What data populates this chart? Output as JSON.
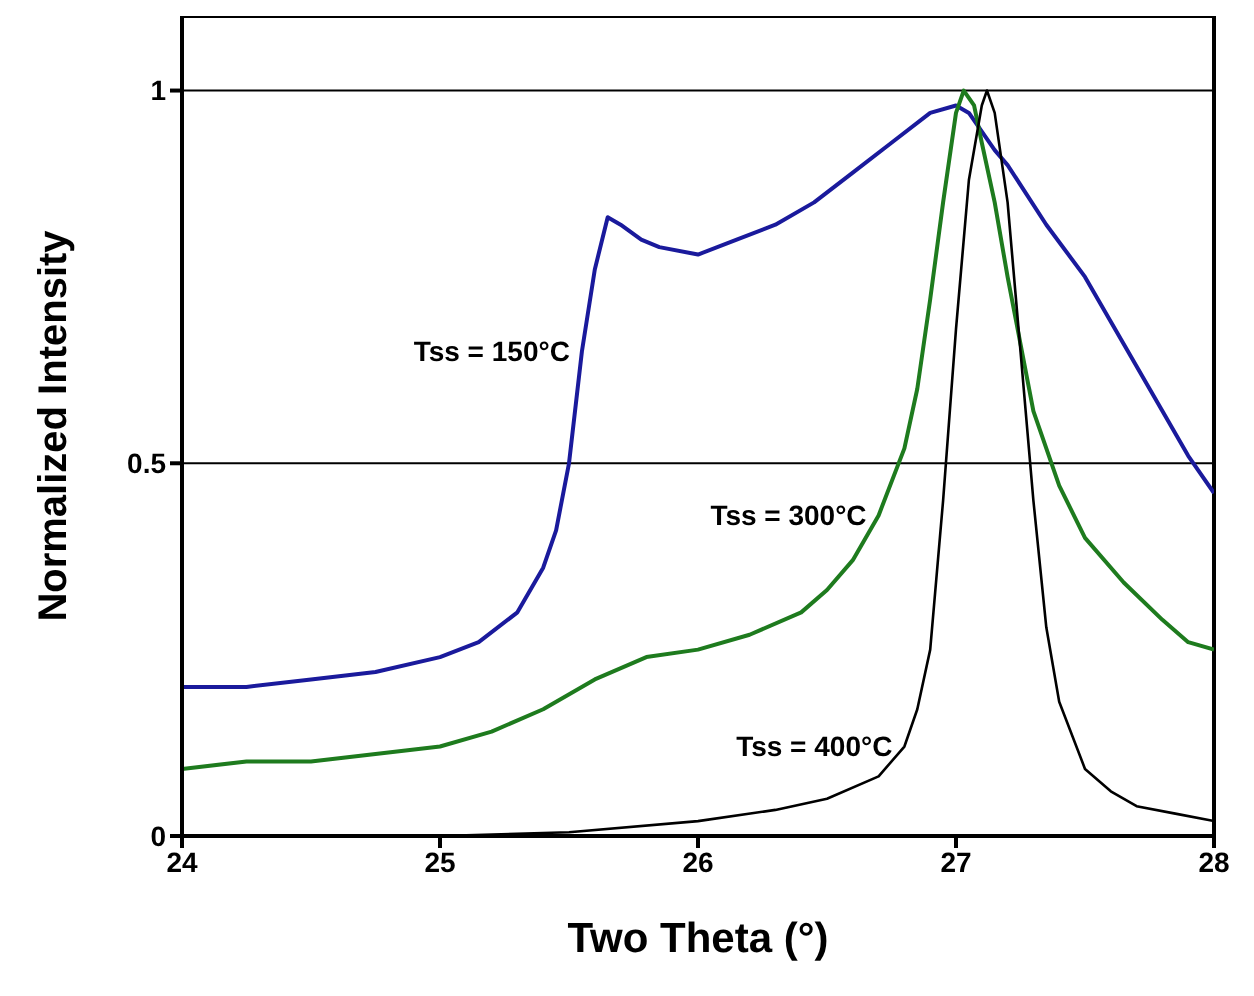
{
  "chart_data": {
    "type": "line",
    "xlabel": "Two Theta (°)",
    "ylabel": "Normalized Intensity",
    "xlim": [
      24,
      28
    ],
    "xticks": [
      24,
      25,
      26,
      27,
      28
    ],
    "ylim": [
      0,
      1.1
    ],
    "yticks": [
      0,
      0.5,
      1
    ],
    "grid": "y",
    "legend": false,
    "marker": "none",
    "line_style": "solid",
    "series": [
      {
        "name": "Tss = 150°C",
        "color": "#1a1a9c",
        "x": [
          24,
          24.25,
          24.5,
          24.75,
          25,
          25.15,
          25.3,
          25.4,
          25.45,
          25.5,
          25.55,
          25.6,
          25.65,
          25.7,
          25.78,
          25.85,
          26,
          26.15,
          26.3,
          26.45,
          26.6,
          26.75,
          26.9,
          27,
          27.05,
          27.15,
          27.2,
          27.35,
          27.5,
          27.65,
          27.8,
          27.9,
          28
        ],
        "values": [
          0.2,
          0.2,
          0.21,
          0.22,
          0.24,
          0.26,
          0.3,
          0.36,
          0.41,
          0.5,
          0.65,
          0.76,
          0.83,
          0.82,
          0.8,
          0.79,
          0.78,
          0.8,
          0.82,
          0.85,
          0.89,
          0.93,
          0.97,
          0.98,
          0.97,
          0.92,
          0.9,
          0.82,
          0.75,
          0.66,
          0.57,
          0.51,
          0.46
        ]
      },
      {
        "name": "Tss = 300°C",
        "color": "#1e7b1e",
        "x": [
          24,
          24.25,
          24.5,
          24.75,
          25,
          25.2,
          25.4,
          25.6,
          25.8,
          26,
          26.2,
          26.4,
          26.5,
          26.6,
          26.7,
          26.8,
          26.85,
          26.9,
          26.95,
          27,
          27.03,
          27.07,
          27.1,
          27.15,
          27.2,
          27.3,
          27.4,
          27.5,
          27.65,
          27.8,
          27.9,
          28
        ],
        "values": [
          0.09,
          0.1,
          0.1,
          0.11,
          0.12,
          0.14,
          0.17,
          0.21,
          0.24,
          0.25,
          0.27,
          0.3,
          0.33,
          0.37,
          0.43,
          0.52,
          0.6,
          0.72,
          0.85,
          0.97,
          1.0,
          0.98,
          0.93,
          0.85,
          0.75,
          0.57,
          0.47,
          0.4,
          0.34,
          0.29,
          0.26,
          0.25
        ]
      },
      {
        "name": "Tss = 400°C",
        "color": "#000000",
        "x": [
          25,
          25.5,
          26,
          26.3,
          26.5,
          26.7,
          26.8,
          26.85,
          26.9,
          26.95,
          27,
          27.05,
          27.1,
          27.12,
          27.15,
          27.2,
          27.25,
          27.3,
          27.35,
          27.4,
          27.5,
          27.6,
          27.7,
          27.85,
          28
        ],
        "values": [
          0,
          0.005,
          0.02,
          0.035,
          0.05,
          0.08,
          0.12,
          0.17,
          0.25,
          0.45,
          0.68,
          0.88,
          0.98,
          1.0,
          0.97,
          0.85,
          0.65,
          0.45,
          0.28,
          0.18,
          0.09,
          0.06,
          0.04,
          0.03,
          0.02
        ]
      }
    ]
  }
}
